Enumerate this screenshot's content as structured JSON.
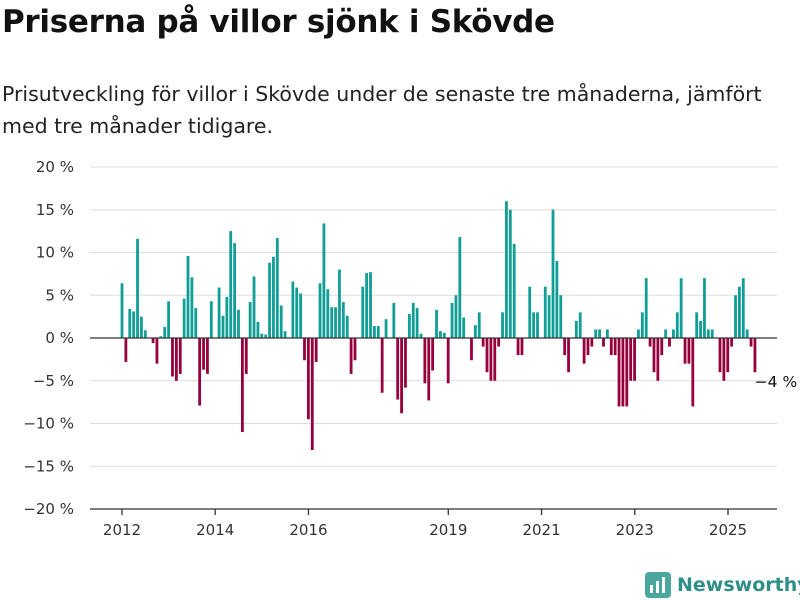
{
  "title": "Priserna på villor sjönk i Skövde",
  "subtitle": "Prisutveckling för villor i Skövde under de senaste tre månaderna, jämfört med tre månader tidigare.",
  "brand": "Newsworthy",
  "colors": {
    "positive": "#109e96",
    "negative": "#96003c",
    "grid": "#dddddd",
    "axis": "#333333",
    "brand": "#2f8f86"
  },
  "chart_data": {
    "type": "bar",
    "ylim": [
      -20,
      20
    ],
    "yticks": [
      20,
      15,
      10,
      5,
      0,
      -5,
      -10,
      -15,
      -20
    ],
    "ytick_labels": [
      "20 %",
      "15 %",
      "10 %",
      "5 %",
      "0 %",
      "−5 %",
      "−10 %",
      "−15 %",
      "−20 %"
    ],
    "xticks": [
      2012,
      2014,
      2016,
      2019,
      2021,
      2023,
      2025
    ],
    "x_start": 2012.0,
    "x_step": 0.0833,
    "values": [
      6.4,
      -2.8,
      3.4,
      3.1,
      11.6,
      2.5,
      0.9,
      0.0,
      -0.6,
      -3.0,
      0.2,
      1.3,
      4.3,
      -4.5,
      -5.0,
      -4.2,
      4.6,
      9.6,
      7.1,
      3.5,
      -7.9,
      -3.7,
      -4.2,
      4.3,
      0.0,
      5.9,
      2.6,
      4.8,
      12.5,
      11.1,
      3.3,
      -11.0,
      -4.2,
      4.2,
      7.2,
      1.9,
      0.5,
      0.4,
      8.8,
      9.5,
      11.7,
      3.8,
      0.8,
      0.0,
      6.6,
      5.9,
      5.2,
      -2.6,
      -9.5,
      -13.1,
      -2.8,
      6.4,
      13.4,
      5.7,
      3.6,
      3.6,
      8.0,
      4.2,
      2.6,
      -4.2,
      -2.6,
      0.0,
      6.0,
      7.6,
      7.7,
      1.4,
      1.4,
      -6.4,
      2.2,
      0.0,
      4.1,
      -7.2,
      -8.8,
      -5.8,
      2.8,
      4.1,
      3.5,
      0.5,
      -5.3,
      -7.3,
      -3.8,
      3.3,
      0.8,
      0.6,
      -5.3,
      4.1,
      5.0,
      11.8,
      2.4,
      0.0,
      -2.6,
      1.5,
      3.0,
      -1.0,
      -4.0,
      -5.0,
      -5.0,
      -1.0,
      3.0,
      16.0,
      15.0,
      11.0,
      -2.0,
      -2.0,
      0.0,
      6.0,
      3.0,
      3.0,
      0.0,
      6.0,
      5.0,
      15.0,
      9.0,
      5.0,
      -2.0,
      -4.0,
      0.0,
      2.0,
      3.0,
      -3.0,
      -2.0,
      -1.0,
      1.0,
      1.0,
      -1.0,
      1.0,
      -2.0,
      -2.0,
      -8.0,
      -8.0,
      -8.0,
      -5.0,
      -5.0,
      1.0,
      3.0,
      7.0,
      -1.0,
      -4.0,
      -5.0,
      -2.0,
      1.0,
      -1.0,
      1.0,
      3.0,
      7.0,
      -3.0,
      -3.0,
      -8.0,
      3.0,
      2.0,
      7.0,
      1.0,
      1.0,
      0.0,
      -4.0,
      -5.0,
      -4.0,
      -1.0,
      5.0,
      6.0,
      7.0,
      1.0,
      -1.0,
      -4.0
    ],
    "annotation": "−4 %"
  }
}
